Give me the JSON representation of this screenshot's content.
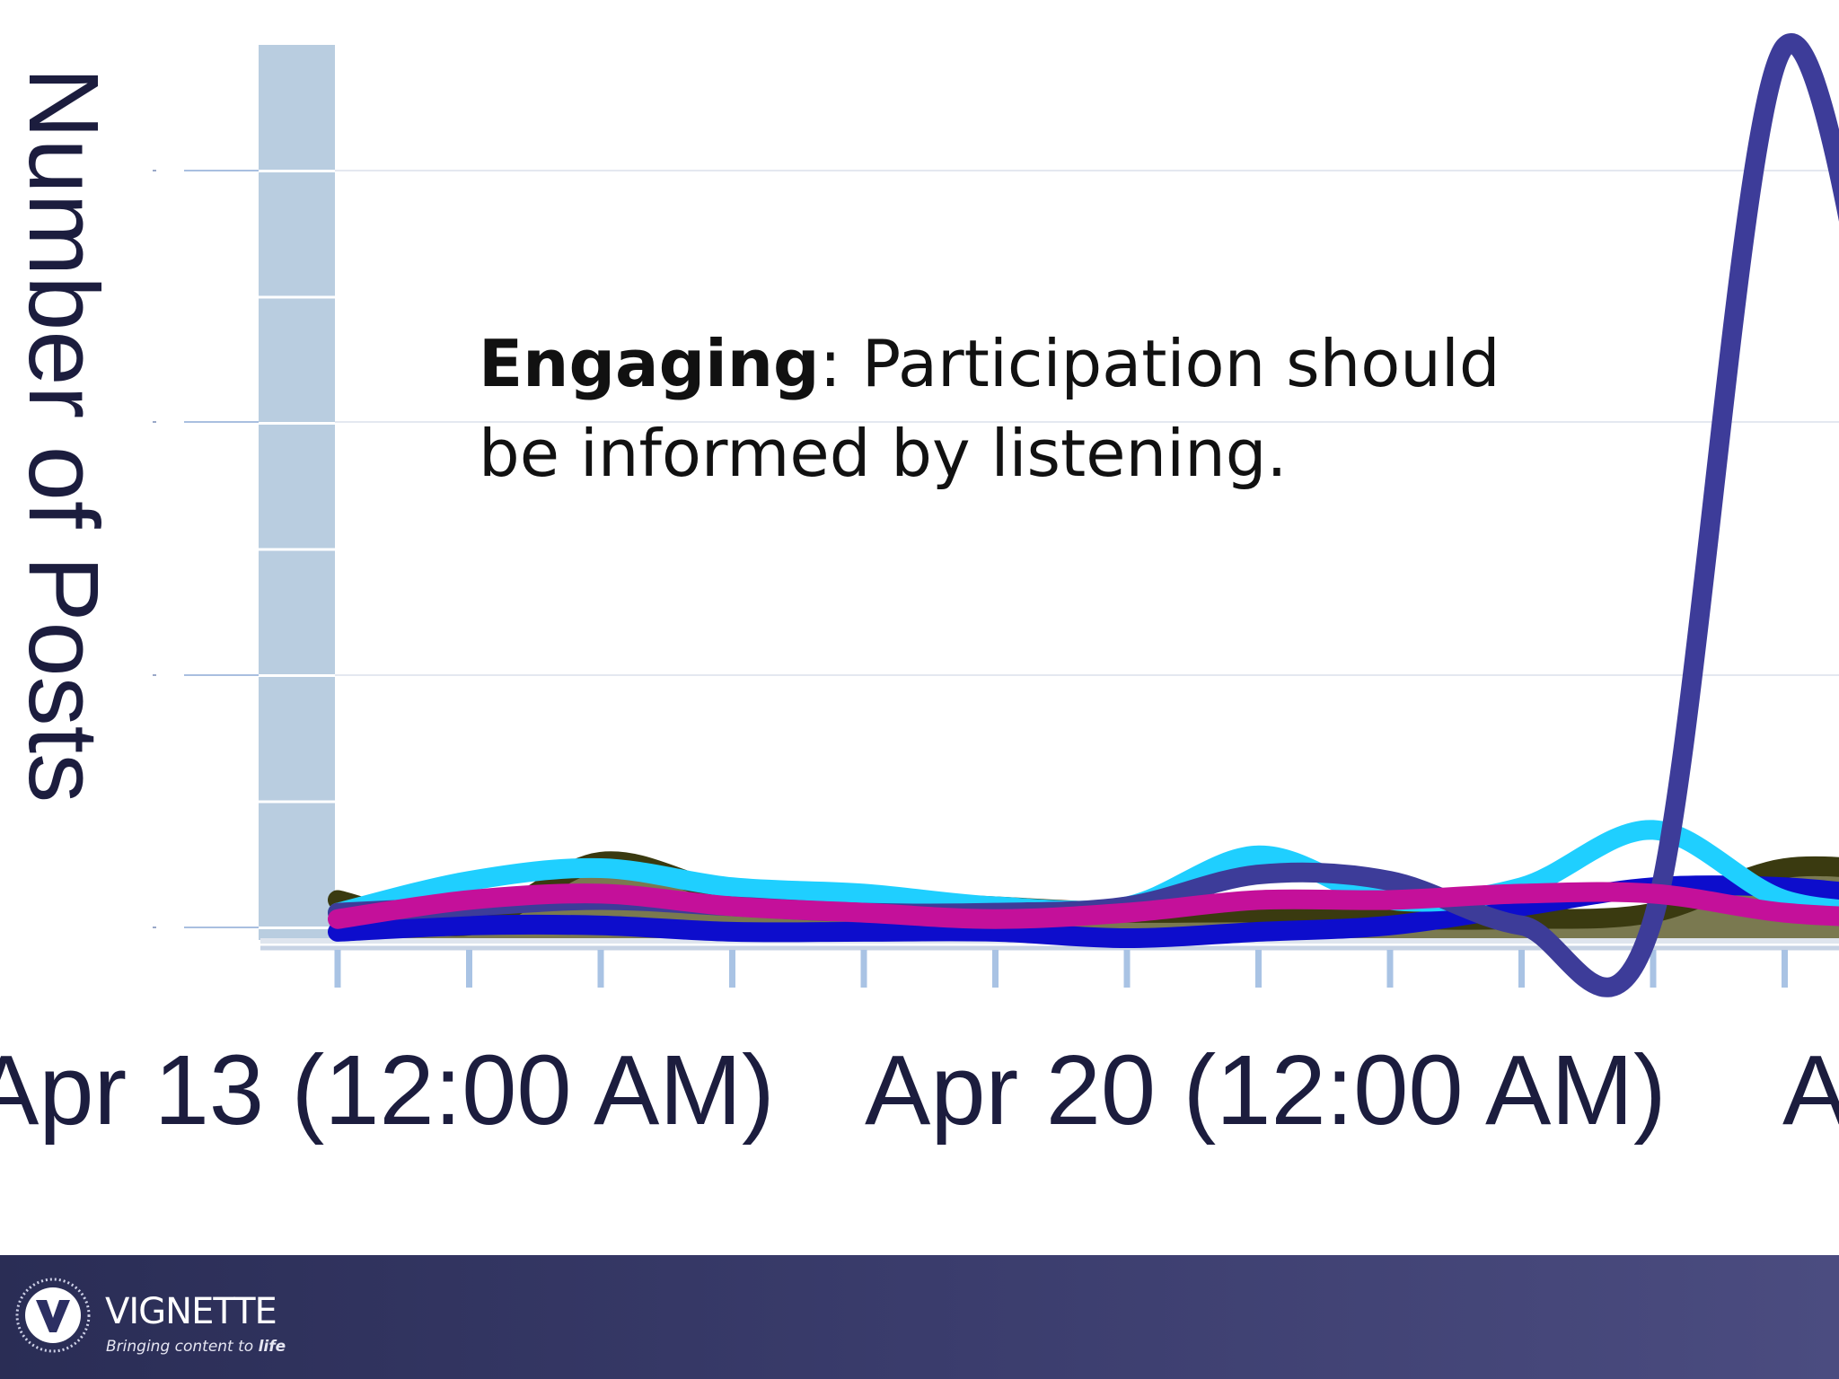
{
  "chart_data": {
    "type": "line",
    "ylabel": "Number of Posts",
    "x_tick_labels": [
      "Apr 13 (12:00 AM)",
      "Apr 20 (12:00 AM)",
      "A"
    ],
    "x_tick_count": 12,
    "ylim": [
      0,
      7
    ],
    "grid": true,
    "series": [
      {
        "color": "#3d3c99",
        "values": [
          0.2,
          0.25,
          0.3,
          0.25,
          0.2,
          0.2,
          0.25,
          0.5,
          0.45,
          0.1,
          0.15,
          7.0,
          2.6
        ]
      },
      {
        "color": "#1fcfff",
        "values": [
          0.2,
          0.45,
          0.55,
          0.4,
          0.35,
          0.25,
          0.25,
          0.65,
          0.3,
          0.4,
          0.85,
          0.3,
          0.2
        ]
      },
      {
        "color": "#3a3a10",
        "values": [
          0.3,
          0.1,
          0.6,
          0.35,
          0.3,
          0.25,
          0.2,
          0.2,
          0.15,
          0.15,
          0.2,
          0.55,
          0.5
        ]
      },
      {
        "color": "#0d0dcc",
        "values": [
          0.05,
          0.1,
          0.1,
          0.05,
          0.05,
          0.05,
          0.0,
          0.05,
          0.1,
          0.25,
          0.4,
          0.4,
          0.3
        ]
      },
      {
        "color": "#c4109a",
        "values": [
          0.15,
          0.3,
          0.35,
          0.25,
          0.2,
          0.15,
          0.2,
          0.3,
          0.3,
          0.35,
          0.35,
          0.2,
          0.15
        ]
      }
    ]
  },
  "callout": {
    "bold": "Engaging",
    "rest": ": Participation should be informed by listening."
  },
  "footer": {
    "brand": "VIGNETTE",
    "tagline_prefix": "Bringing content to ",
    "tagline_emph": "life"
  }
}
